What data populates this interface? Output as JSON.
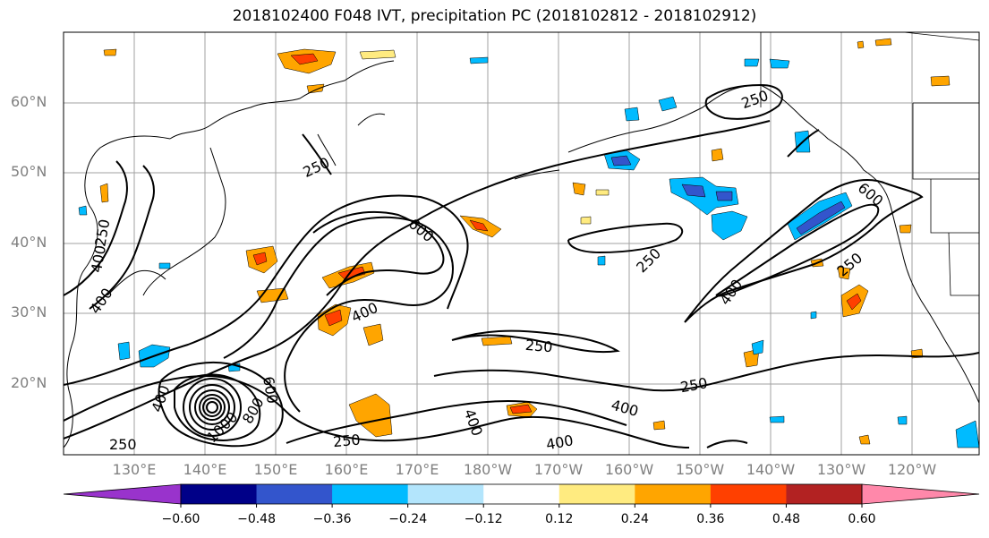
{
  "title": "2018102400 F048 IVT, precipitation PC (2018102812 - 2018102912)",
  "lat_labels": [
    "60°N",
    "50°N",
    "40°N",
    "30°N",
    "20°N"
  ],
  "lon_labels": [
    "130°E",
    "140°E",
    "150°E",
    "160°E",
    "170°E",
    "180°W",
    "170°W",
    "160°W",
    "150°W",
    "140°W",
    "130°W",
    "120°W"
  ],
  "contour_labels": {
    "c1": "250",
    "c2": "250",
    "c3": "400",
    "c4": "600",
    "c5": "250",
    "c6": "600",
    "c7": "400",
    "c8": "250",
    "c9": "250",
    "c10": "400",
    "c11": "250",
    "c12": "400",
    "c13": "400",
    "c14": "250",
    "c15": "400",
    "c16": "400",
    "c17": "600",
    "c18": "800",
    "c19": "1000",
    "c20": "250",
    "c21": "400",
    "c22": "250"
  },
  "colorbar": {
    "tick_labels": [
      "−0.60",
      "−0.48",
      "−0.36",
      "−0.24",
      "−0.12",
      "0.12",
      "0.24",
      "0.36",
      "0.48",
      "0.60"
    ],
    "colors": [
      "#9933cc",
      "#000088",
      "#3355cc",
      "#00bbff",
      "#b3e5fc",
      "#ffffff",
      "#ffeb80",
      "#ffa500",
      "#ff4000",
      "#b22222",
      "#ff88aa"
    ]
  }
}
